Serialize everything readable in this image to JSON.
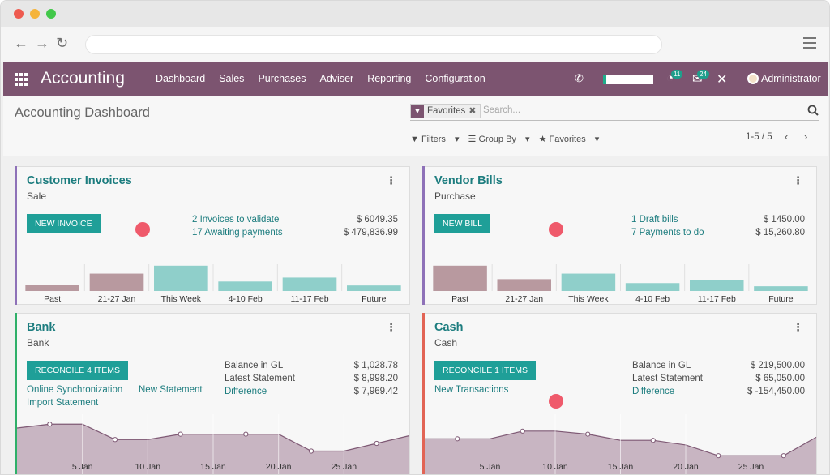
{
  "browser": {
    "menu_icon": "hamburger-icon"
  },
  "topnav": {
    "brand": "Accounting",
    "menu": [
      "Dashboard",
      "Sales",
      "Purchases",
      "Adviser",
      "Reporting",
      "Configuration"
    ],
    "badge_activity": "11",
    "badge_messages": "24",
    "user": "Administrator",
    "accent": "#7c5470"
  },
  "control": {
    "title": "Accounting Dashboard",
    "facet": "Favorites",
    "search_placeholder": "Search...",
    "filters": "Filters",
    "group_by": "Group By",
    "favorites": "Favorites",
    "pager": "1-5 / 5"
  },
  "cards": {
    "customer_invoices": {
      "title": "Customer Invoices",
      "subtitle": "Sale",
      "button": "NEW INVOICE",
      "links": [
        "2 Invoices to validate",
        "17 Awaiting payments"
      ],
      "amounts": [
        "$ 6049.35",
        "$ 479,836.99"
      ],
      "chart_data": {
        "type": "bar",
        "categories": [
          "Past",
          "21-27 Jan",
          "This Week",
          "4-10 Feb",
          "11-17 Feb",
          "Future"
        ],
        "values": [
          8,
          22,
          32,
          12,
          17,
          7
        ],
        "colors": [
          "#b8999f",
          "#b8999f",
          "#8fcfca",
          "#8fcfca",
          "#8fcfca",
          "#8fcfca"
        ],
        "ylim": [
          0,
          40
        ]
      }
    },
    "vendor_bills": {
      "title": "Vendor Bills",
      "subtitle": "Purchase",
      "button": "NEW BILL",
      "links": [
        "1 Draft bills",
        "7 Payments to do"
      ],
      "amounts": [
        "$ 1450.00",
        "$ 15,260.80"
      ],
      "chart_data": {
        "type": "bar",
        "categories": [
          "Past",
          "21-27 Jan",
          "This Week",
          "4-10 Feb",
          "11-17 Feb",
          "Future"
        ],
        "values": [
          32,
          15,
          22,
          10,
          14,
          6
        ],
        "colors": [
          "#b8999f",
          "#b8999f",
          "#8fcfca",
          "#8fcfca",
          "#8fcfca",
          "#8fcfca"
        ],
        "ylim": [
          0,
          40
        ]
      }
    },
    "bank": {
      "title": "Bank",
      "subtitle": "Bank",
      "button": "RECONCILE 4 ITEMS",
      "links": [
        "Online Synchronization",
        "New Statement",
        "Import Statement"
      ],
      "labels": [
        "Balance in GL",
        "Latest Statement"
      ],
      "difference_link": "Difference",
      "amounts": [
        "$ 1,028.78",
        "$ 8,998.20",
        "$ 7,969.42"
      ],
      "chart_data": {
        "type": "area",
        "categories": [
          "5 Jan",
          "10 Jan",
          "15 Jan",
          "20 Jan",
          "25 Jan"
        ],
        "x": [
          0,
          1,
          2,
          3,
          4,
          5,
          6,
          7,
          8,
          9,
          10,
          11,
          12
        ],
        "values": [
          60,
          65,
          65,
          45,
          45,
          52,
          52,
          52,
          52,
          30,
          30,
          40,
          50
        ],
        "ylim": [
          0,
          80
        ]
      }
    },
    "cash": {
      "title": "Cash",
      "subtitle": "Cash",
      "button": "RECONCILE 1 ITEMS",
      "links": [
        "New Transactions"
      ],
      "labels": [
        "Balance in GL",
        "Latest Statement"
      ],
      "difference_link": "Difference",
      "amounts": [
        "$ 219,500.00",
        "$ 65,050.00",
        "$ -154,450.00"
      ],
      "chart_data": {
        "type": "area",
        "categories": [
          "5 Jan",
          "10 Jan",
          "15 Jan",
          "20 Jan",
          "25 Jan"
        ],
        "x": [
          0,
          1,
          2,
          3,
          4,
          5,
          6,
          7,
          8,
          9,
          10,
          11,
          12
        ],
        "values": [
          46,
          46,
          46,
          56,
          56,
          52,
          44,
          44,
          38,
          24,
          24,
          24,
          48
        ],
        "ylim": [
          0,
          80
        ]
      }
    }
  },
  "colors": {
    "teal": "#1f9f98",
    "link": "#1d7d7f",
    "invoice_bar": "#8e71b8",
    "bank_bar": "#2fb069",
    "cash_bar": "#e26455",
    "area_fill": "#c8b5c2",
    "area_line": "#7f5a75"
  }
}
